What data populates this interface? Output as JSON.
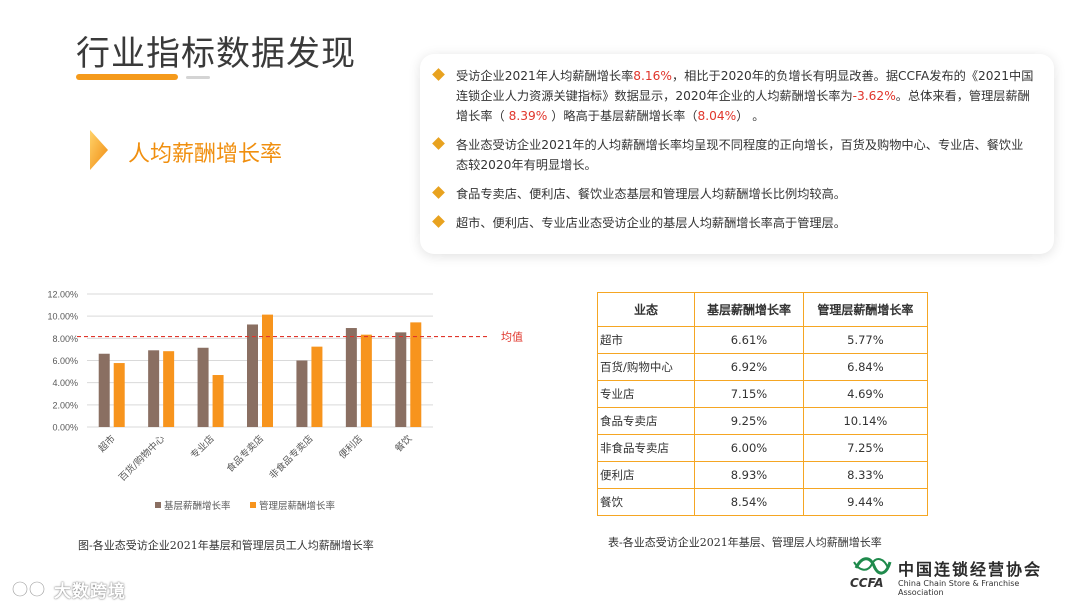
{
  "page": {
    "title": "行业指标数据发现",
    "section_title": "人均薪酬增长率"
  },
  "findings": [
    {
      "segments": [
        {
          "text": "受访企业2021年人均薪酬增长率",
          "hl": false
        },
        {
          "text": "8.16%",
          "hl": true
        },
        {
          "text": "，相比于2020年的负增长有明显改善。据CCFA发布的《2021中国连锁企业人力资源关键指标》数据显示，2020年企业的人均薪酬增长率为",
          "hl": false
        },
        {
          "text": "-3.62%",
          "hl": true
        },
        {
          "text": "。总体来看，管理层薪酬增长率（ ",
          "hl": false
        },
        {
          "text": "8.39%",
          "hl": true
        },
        {
          "text": " ）略高于基层薪酬增长率（",
          "hl": false
        },
        {
          "text": "8.04%",
          "hl": true
        },
        {
          "text": "） 。",
          "hl": false
        }
      ]
    },
    {
      "segments": [
        {
          "text": "各业态受访企业2021年的人均薪酬增长率均呈现不同程度的正向增长，百货及购物中心、专业店、餐饮业态较2020年有明显增长。",
          "hl": false
        }
      ]
    },
    {
      "segments": [
        {
          "text": "食品专卖店、便利店、餐饮业态基层和管理层人均薪酬增长比例均较高。",
          "hl": false
        }
      ]
    },
    {
      "segments": [
        {
          "text": "超市、便利店、专业店业态受访企业的基层人均薪酬增长率高于管理层。",
          "hl": false
        }
      ]
    }
  ],
  "chart_data": {
    "type": "bar",
    "title": "",
    "categories": [
      "超市",
      "百货/购物中心",
      "专业店",
      "食品专卖店",
      "非食品专卖店",
      "便利店",
      "餐饮"
    ],
    "series": [
      {
        "name": "基层薪酬增长率",
        "color": "#8a6f62",
        "values": [
          6.61,
          6.92,
          7.15,
          9.25,
          6.0,
          8.93,
          8.54
        ]
      },
      {
        "name": "管理层薪酬增长率",
        "color": "#f7941d",
        "values": [
          5.77,
          6.84,
          4.69,
          10.14,
          7.25,
          8.33,
          9.44
        ]
      }
    ],
    "ylim": [
      0,
      12
    ],
    "yticks": [
      0,
      2,
      4,
      6,
      8,
      10,
      12
    ],
    "ytick_labels": [
      "0.00%",
      "2.00%",
      "4.00%",
      "6.00%",
      "8.00%",
      "10.00%",
      "12.00%"
    ],
    "gridlines": true,
    "average_line": {
      "value": 8.16,
      "label": "均值",
      "color": "#e0352b"
    },
    "legend_position": "bottom",
    "xlabel": "",
    "ylabel": "",
    "caption": "图-各业态受访企业2021年基层和管理层员工人均薪酬增长率"
  },
  "table": {
    "headers": [
      "业态",
      "基层薪酬增长率",
      "管理层薪酬增长率"
    ],
    "rows": [
      [
        "超市",
        "6.61%",
        "5.77%"
      ],
      [
        "百货/购物中心",
        "6.92%",
        "6.84%"
      ],
      [
        "专业店",
        "7.15%",
        "4.69%"
      ],
      [
        "食品专卖店",
        "9.25%",
        "10.14%"
      ],
      [
        "非食品专卖店",
        "6.00%",
        "7.25%"
      ],
      [
        "便利店",
        "8.93%",
        "8.33%"
      ],
      [
        "餐饮",
        "8.54%",
        "9.44%"
      ]
    ],
    "caption": "表-各业态受访企业2021年基层、管理层人均薪酬增长率"
  },
  "logo": {
    "abbr": "CCFA",
    "cn_name": "中国连锁经营协会",
    "en_name": "China Chain Store & Franchise Association"
  },
  "watermark": {
    "text": "大数跨境"
  },
  "colors": {
    "accent": "#f7941d",
    "brown": "#8a6f62",
    "highlight": "#e0352b"
  }
}
